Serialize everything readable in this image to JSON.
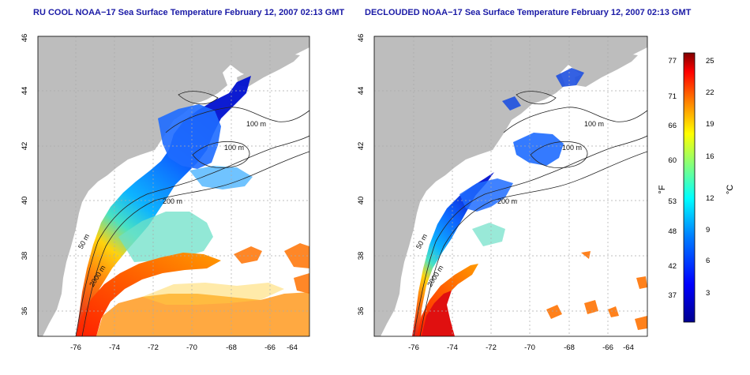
{
  "panels": [
    {
      "title": "RU COOL NOAA−17 Sea Surface Temperature February 12, 2007 02:13 GMT",
      "x_ticks": [
        "-76",
        "-74",
        "-72",
        "-70",
        "-68",
        "-66",
        "-64"
      ],
      "y_ticks": [
        "36",
        "38",
        "40",
        "42",
        "44",
        "46"
      ],
      "contour_labels": [
        "100 m",
        "100 m",
        "200 m",
        "50 m",
        "2000 m"
      ]
    },
    {
      "title": "DECLOUDED NOAA−17 Sea Surface Temperature February 12, 2007 02:13 GMT",
      "x_ticks": [
        "-76",
        "-74",
        "-72",
        "-70",
        "-68",
        "-66",
        "-64"
      ],
      "y_ticks": [
        "36",
        "38",
        "40",
        "42",
        "44",
        "46"
      ],
      "contour_labels": [
        "100 m",
        "100 m",
        "200 m",
        "50 m",
        "2000 m"
      ]
    }
  ],
  "colorbar": {
    "f_label": "°F",
    "c_label": "°C",
    "f_ticks": [
      "77",
      "71",
      "66",
      "60",
      "53",
      "48",
      "42",
      "37"
    ],
    "c_ticks": [
      "25",
      "22",
      "19",
      "16",
      "12",
      "9",
      "6",
      "3"
    ]
  },
  "colors": {
    "land": "#bdbdbd",
    "ocean_no_data": "#ffffff",
    "title": "#1a1aa6",
    "grid": "#aaaaaa",
    "contour": "#222222"
  }
}
